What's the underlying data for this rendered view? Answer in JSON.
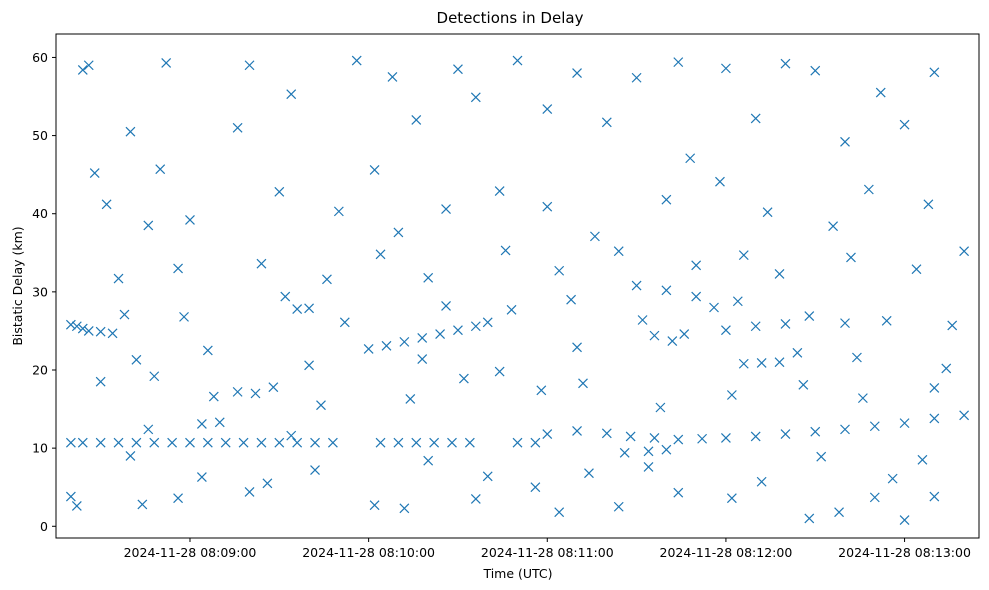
{
  "chart_data": {
    "type": "scatter",
    "title": "Detections in Delay",
    "xlabel": "Time (UTC)",
    "ylabel": "Bistatic Delay (km)",
    "marker": "x",
    "color": "#1f77b4",
    "grid": false,
    "legend": "none",
    "x_start": "2024-11-28 08:08:19",
    "x_end": "2024-11-28 08:13:21",
    "xlim": [
      "2024-11-28 08:08:15",
      "2024-11-28 08:13:25"
    ],
    "ylim": [
      -1.5,
      63
    ],
    "xticks": [
      {
        "value": "2024-11-28 08:09:00",
        "label": "2024-11-28 08:09:00"
      },
      {
        "value": "2024-11-28 08:10:00",
        "label": "2024-11-28 08:10:00"
      },
      {
        "value": "2024-11-28 08:11:00",
        "label": "2024-11-28 08:11:00"
      },
      {
        "value": "2024-11-28 08:12:00",
        "label": "2024-11-28 08:12:00"
      },
      {
        "value": "2024-11-28 08:13:00",
        "label": "2024-11-28 08:13:00"
      }
    ],
    "yticks": [
      0,
      10,
      20,
      30,
      40,
      50,
      60
    ],
    "series": [
      {
        "name": "",
        "points": [
          [
            "2024-11-28 08:08:20",
            25.8
          ],
          [
            "2024-11-28 08:08:22",
            25.6
          ],
          [
            "2024-11-28 08:08:24",
            25.3
          ],
          [
            "2024-11-28 08:08:26",
            25.0
          ],
          [
            "2024-11-28 08:08:30",
            24.9
          ],
          [
            "2024-11-28 08:08:34",
            24.7
          ],
          [
            "2024-11-28 08:08:20",
            10.7
          ],
          [
            "2024-11-28 08:08:24",
            10.7
          ],
          [
            "2024-11-28 08:08:30",
            10.7
          ],
          [
            "2024-11-28 08:08:36",
            10.7
          ],
          [
            "2024-11-28 08:08:42",
            10.7
          ],
          [
            "2024-11-28 08:08:48",
            10.7
          ],
          [
            "2024-11-28 08:08:54",
            10.7
          ],
          [
            "2024-11-28 08:09:00",
            10.7
          ],
          [
            "2024-11-28 08:09:06",
            10.7
          ],
          [
            "2024-11-28 08:09:12",
            10.7
          ],
          [
            "2024-11-28 08:09:18",
            10.7
          ],
          [
            "2024-11-28 08:09:24",
            10.7
          ],
          [
            "2024-11-28 08:09:30",
            10.7
          ],
          [
            "2024-11-28 08:09:36",
            10.7
          ],
          [
            "2024-11-28 08:09:42",
            10.7
          ],
          [
            "2024-11-28 08:09:48",
            10.7
          ],
          [
            "2024-11-28 08:10:04",
            10.7
          ],
          [
            "2024-11-28 08:10:10",
            10.7
          ],
          [
            "2024-11-28 08:10:16",
            10.7
          ],
          [
            "2024-11-28 08:10:22",
            10.7
          ],
          [
            "2024-11-28 08:10:28",
            10.7
          ],
          [
            "2024-11-28 08:10:34",
            10.7
          ],
          [
            "2024-11-28 08:10:50",
            10.7
          ],
          [
            "2024-11-28 08:10:56",
            10.7
          ],
          [
            "2024-11-28 08:08:40",
            9.0
          ],
          [
            "2024-11-28 08:08:46",
            12.4
          ],
          [
            "2024-11-28 08:09:04",
            13.1
          ],
          [
            "2024-11-28 08:09:10",
            13.3
          ],
          [
            "2024-11-28 08:09:16",
            17.2
          ],
          [
            "2024-11-28 08:09:22",
            17.0
          ],
          [
            "2024-11-28 08:09:28",
            17.8
          ],
          [
            "2024-11-28 08:09:34",
            11.6
          ],
          [
            "2024-11-28 08:10:00",
            22.7
          ],
          [
            "2024-11-28 08:10:06",
            23.1
          ],
          [
            "2024-11-28 08:10:12",
            23.6
          ],
          [
            "2024-11-28 08:10:18",
            24.1
          ],
          [
            "2024-11-28 08:10:24",
            24.6
          ],
          [
            "2024-11-28 08:10:30",
            25.1
          ],
          [
            "2024-11-28 08:10:36",
            25.6
          ],
          [
            "2024-11-28 08:10:40",
            26.1
          ],
          [
            "2024-11-28 08:11:00",
            11.8
          ],
          [
            "2024-11-28 08:11:10",
            12.2
          ],
          [
            "2024-11-28 08:11:20",
            11.9
          ],
          [
            "2024-11-28 08:11:28",
            11.5
          ],
          [
            "2024-11-28 08:11:36",
            11.3
          ],
          [
            "2024-11-28 08:11:44",
            11.1
          ],
          [
            "2024-11-28 08:11:52",
            11.2
          ],
          [
            "2024-11-28 08:12:00",
            11.3
          ],
          [
            "2024-11-28 08:12:10",
            11.5
          ],
          [
            "2024-11-28 08:12:20",
            11.8
          ],
          [
            "2024-11-28 08:12:30",
            12.1
          ],
          [
            "2024-11-28 08:12:40",
            12.4
          ],
          [
            "2024-11-28 08:12:50",
            12.8
          ],
          [
            "2024-11-28 08:13:00",
            13.2
          ],
          [
            "2024-11-28 08:13:10",
            13.8
          ],
          [
            "2024-11-28 08:13:20",
            14.2
          ],
          [
            "2024-11-28 08:11:26",
            9.4
          ],
          [
            "2024-11-28 08:11:34",
            9.6
          ],
          [
            "2024-11-28 08:11:40",
            9.8
          ],
          [
            "2024-11-28 08:11:30",
            30.8
          ],
          [
            "2024-11-28 08:11:40",
            30.2
          ],
          [
            "2024-11-28 08:11:50",
            29.4
          ],
          [
            "2024-11-28 08:11:36",
            24.4
          ],
          [
            "2024-11-28 08:11:46",
            24.6
          ],
          [
            "2024-11-28 08:12:00",
            25.1
          ],
          [
            "2024-11-28 08:12:10",
            25.6
          ],
          [
            "2024-11-28 08:12:20",
            25.9
          ],
          [
            "2024-11-28 08:12:40",
            26.0
          ],
          [
            "2024-11-28 08:12:06",
            20.8
          ],
          [
            "2024-11-28 08:12:12",
            20.9
          ],
          [
            "2024-11-28 08:12:18",
            21.0
          ],
          [
            "2024-11-28 08:11:56",
            28.0
          ],
          [
            "2024-11-28 08:12:06",
            34.7
          ],
          [
            "2024-11-28 08:09:36",
            27.8
          ],
          [
            "2024-11-28 08:09:40",
            27.9
          ],
          [
            "2024-11-28 08:08:24",
            58.4
          ],
          [
            "2024-11-28 08:08:26",
            59.0
          ],
          [
            "2024-11-28 08:08:40",
            50.5
          ],
          [
            "2024-11-28 08:08:52",
            59.3
          ],
          [
            "2024-11-28 08:09:20",
            59.0
          ],
          [
            "2024-11-28 08:09:56",
            59.6
          ],
          [
            "2024-11-28 08:10:08",
            57.5
          ],
          [
            "2024-11-28 08:10:30",
            58.5
          ],
          [
            "2024-11-28 08:10:50",
            59.6
          ],
          [
            "2024-11-28 08:11:10",
            58.0
          ],
          [
            "2024-11-28 08:11:30",
            57.4
          ],
          [
            "2024-11-28 08:11:44",
            59.4
          ],
          [
            "2024-11-28 08:12:00",
            58.6
          ],
          [
            "2024-11-28 08:12:20",
            59.2
          ],
          [
            "2024-11-28 08:12:30",
            58.3
          ],
          [
            "2024-11-28 08:12:52",
            55.5
          ],
          [
            "2024-11-28 08:13:10",
            58.1
          ],
          [
            "2024-11-28 08:08:28",
            45.2
          ],
          [
            "2024-11-28 08:08:50",
            45.7
          ],
          [
            "2024-11-28 08:09:16",
            51.0
          ],
          [
            "2024-11-28 08:09:34",
            55.3
          ],
          [
            "2024-11-28 08:10:02",
            45.6
          ],
          [
            "2024-11-28 08:10:16",
            52.0
          ],
          [
            "2024-11-28 08:10:36",
            54.9
          ],
          [
            "2024-11-28 08:11:00",
            53.4
          ],
          [
            "2024-11-28 08:11:20",
            51.7
          ],
          [
            "2024-11-28 08:11:48",
            47.1
          ],
          [
            "2024-11-28 08:12:10",
            52.2
          ],
          [
            "2024-11-28 08:12:40",
            49.2
          ],
          [
            "2024-11-28 08:13:00",
            51.4
          ],
          [
            "2024-11-28 08:08:32",
            41.2
          ],
          [
            "2024-11-28 08:08:46",
            38.5
          ],
          [
            "2024-11-28 08:09:00",
            39.2
          ],
          [
            "2024-11-28 08:09:30",
            42.8
          ],
          [
            "2024-11-28 08:09:50",
            40.3
          ],
          [
            "2024-11-28 08:10:10",
            37.6
          ],
          [
            "2024-11-28 08:10:26",
            40.6
          ],
          [
            "2024-11-28 08:10:44",
            42.9
          ],
          [
            "2024-11-28 08:11:00",
            40.9
          ],
          [
            "2024-11-28 08:11:16",
            37.1
          ],
          [
            "2024-11-28 08:11:40",
            41.8
          ],
          [
            "2024-11-28 08:11:58",
            44.1
          ],
          [
            "2024-11-28 08:12:14",
            40.2
          ],
          [
            "2024-11-28 08:12:36",
            38.4
          ],
          [
            "2024-11-28 08:12:48",
            43.1
          ],
          [
            "2024-11-28 08:13:08",
            41.2
          ],
          [
            "2024-11-28 08:08:36",
            31.7
          ],
          [
            "2024-11-28 08:08:56",
            33.0
          ],
          [
            "2024-11-28 08:09:24",
            33.6
          ],
          [
            "2024-11-28 08:09:46",
            31.6
          ],
          [
            "2024-11-28 08:10:04",
            34.8
          ],
          [
            "2024-11-28 08:10:20",
            31.8
          ],
          [
            "2024-11-28 08:10:46",
            35.3
          ],
          [
            "2024-11-28 08:11:04",
            32.7
          ],
          [
            "2024-11-28 08:11:24",
            35.2
          ],
          [
            "2024-11-28 08:11:50",
            33.4
          ],
          [
            "2024-11-28 08:12:18",
            32.3
          ],
          [
            "2024-11-28 08:12:42",
            34.4
          ],
          [
            "2024-11-28 08:13:04",
            32.9
          ],
          [
            "2024-11-28 08:13:20",
            35.2
          ],
          [
            "2024-11-28 08:08:30",
            18.5
          ],
          [
            "2024-11-28 08:08:48",
            19.2
          ],
          [
            "2024-11-28 08:09:08",
            16.6
          ],
          [
            "2024-11-28 08:09:44",
            15.5
          ],
          [
            "2024-11-28 08:10:14",
            16.3
          ],
          [
            "2024-11-28 08:10:32",
            18.9
          ],
          [
            "2024-11-28 08:10:58",
            17.4
          ],
          [
            "2024-11-28 08:11:12",
            18.3
          ],
          [
            "2024-11-28 08:11:38",
            15.2
          ],
          [
            "2024-11-28 08:12:02",
            16.8
          ],
          [
            "2024-11-28 08:12:26",
            18.1
          ],
          [
            "2024-11-28 08:12:46",
            16.4
          ],
          [
            "2024-11-28 08:13:10",
            17.7
          ],
          [
            "2024-11-28 08:08:20",
            3.8
          ],
          [
            "2024-11-28 08:08:22",
            2.6
          ],
          [
            "2024-11-28 08:08:44",
            2.8
          ],
          [
            "2024-11-28 08:08:56",
            3.6
          ],
          [
            "2024-11-28 08:09:20",
            4.4
          ],
          [
            "2024-11-28 08:09:42",
            7.2
          ],
          [
            "2024-11-28 08:10:02",
            2.7
          ],
          [
            "2024-11-28 08:10:12",
            2.3
          ],
          [
            "2024-11-28 08:10:36",
            3.5
          ],
          [
            "2024-11-28 08:10:56",
            5.0
          ],
          [
            "2024-11-28 08:11:04",
            1.8
          ],
          [
            "2024-11-28 08:11:24",
            2.5
          ],
          [
            "2024-11-28 08:11:44",
            4.3
          ],
          [
            "2024-11-28 08:12:02",
            3.6
          ],
          [
            "2024-11-28 08:12:28",
            1.0
          ],
          [
            "2024-11-28 08:12:38",
            1.8
          ],
          [
            "2024-11-28 08:12:50",
            3.7
          ],
          [
            "2024-11-28 08:13:00",
            0.8
          ],
          [
            "2024-11-28 08:13:10",
            3.8
          ],
          [
            "2024-11-28 08:09:04",
            6.3
          ],
          [
            "2024-11-28 08:09:26",
            5.5
          ],
          [
            "2024-11-28 08:10:20",
            8.4
          ],
          [
            "2024-11-28 08:10:40",
            6.4
          ],
          [
            "2024-11-28 08:11:14",
            6.8
          ],
          [
            "2024-11-28 08:11:34",
            7.6
          ],
          [
            "2024-11-28 08:12:12",
            5.7
          ],
          [
            "2024-11-28 08:12:32",
            8.9
          ],
          [
            "2024-11-28 08:12:56",
            6.1
          ],
          [
            "2024-11-28 08:13:06",
            8.5
          ],
          [
            "2024-11-28 08:08:38",
            27.1
          ],
          [
            "2024-11-28 08:08:58",
            26.8
          ],
          [
            "2024-11-28 08:09:32",
            29.4
          ],
          [
            "2024-11-28 08:09:52",
            26.1
          ],
          [
            "2024-11-28 08:10:26",
            28.2
          ],
          [
            "2024-11-28 08:10:48",
            27.7
          ],
          [
            "2024-11-28 08:11:08",
            29.0
          ],
          [
            "2024-11-28 08:11:32",
            26.4
          ],
          [
            "2024-11-28 08:12:04",
            28.8
          ],
          [
            "2024-11-28 08:12:28",
            26.9
          ],
          [
            "2024-11-28 08:12:54",
            26.3
          ],
          [
            "2024-11-28 08:13:16",
            25.7
          ],
          [
            "2024-11-28 08:08:42",
            21.3
          ],
          [
            "2024-11-28 08:09:06",
            22.5
          ],
          [
            "2024-11-28 08:09:40",
            20.6
          ],
          [
            "2024-11-28 08:10:18",
            21.4
          ],
          [
            "2024-11-28 08:10:44",
            19.8
          ],
          [
            "2024-11-28 08:11:10",
            22.9
          ],
          [
            "2024-11-28 08:11:42",
            23.7
          ],
          [
            "2024-11-28 08:12:24",
            22.2
          ],
          [
            "2024-11-28 08:12:44",
            21.6
          ],
          [
            "2024-11-28 08:13:14",
            20.2
          ]
        ]
      }
    ]
  }
}
